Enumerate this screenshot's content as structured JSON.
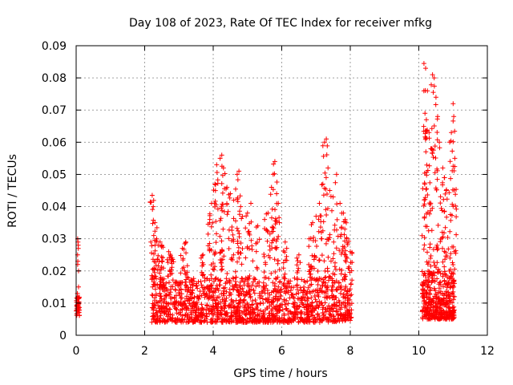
{
  "chart_data": {
    "type": "scatter",
    "title": "Day 108 of 2023, Rate Of TEC Index for receiver mfkg",
    "xlabel": "GPS time / hours",
    "ylabel": "ROTI / TECUs",
    "xlim": [
      0,
      12
    ],
    "ylim": [
      0,
      0.09
    ],
    "xticks": [
      0,
      2,
      4,
      6,
      8,
      10,
      12
    ],
    "xtick_labels": [
      "0",
      "2",
      "4",
      "6",
      "8",
      "10",
      "12"
    ],
    "yticks": [
      0,
      0.01,
      0.02,
      0.03,
      0.04,
      0.05,
      0.06,
      0.07,
      0.08,
      0.09
    ],
    "ytick_labels": [
      "0",
      "0.01",
      "0.02",
      "0.03",
      "0.04",
      "0.05",
      "0.06",
      "0.07",
      "0.08",
      "0.09"
    ],
    "grid": true,
    "marker": "+",
    "color": "#ff0000",
    "series": [
      {
        "name": "ROTI",
        "segments": [
          {
            "x_range": [
              0.0,
              0.1
            ],
            "typical": [
              0.006,
              0.012
            ],
            "spikes": [
              0.029,
              0.03,
              0.028,
              0.025,
              0.023,
              0.02,
              0.015,
              0.013,
              0.022,
              0.027
            ]
          },
          {
            "x_range": [
              2.2,
              8.05
            ],
            "typical": [
              0.004,
              0.018
            ],
            "spikes": [
              [
                2.22,
                0.0435
              ],
              [
                2.25,
                0.04
              ],
              [
                2.3,
                0.035
              ],
              [
                2.35,
                0.03
              ],
              [
                2.45,
                0.029
              ],
              [
                2.5,
                0.028
              ],
              [
                2.7,
                0.026
              ],
              [
                2.8,
                0.024
              ],
              [
                3.1,
                0.027
              ],
              [
                3.2,
                0.029
              ],
              [
                3.7,
                0.025
              ],
              [
                3.9,
                0.036
              ],
              [
                3.95,
                0.041
              ],
              [
                4.05,
                0.047
              ],
              [
                4.1,
                0.053
              ],
              [
                4.2,
                0.055
              ],
              [
                4.25,
                0.056
              ],
              [
                4.3,
                0.052
              ],
              [
                4.4,
                0.046
              ],
              [
                4.5,
                0.044
              ],
              [
                4.6,
                0.042
              ],
              [
                4.7,
                0.05
              ],
              [
                4.75,
                0.051
              ],
              [
                4.8,
                0.04
              ],
              [
                5.0,
                0.038
              ],
              [
                5.1,
                0.041
              ],
              [
                5.3,
                0.034
              ],
              [
                5.5,
                0.036
              ],
              [
                5.6,
                0.038
              ],
              [
                5.7,
                0.046
              ],
              [
                5.75,
                0.05
              ],
              [
                5.8,
                0.054
              ],
              [
                5.85,
                0.044
              ],
              [
                5.9,
                0.041
              ],
              [
                6.1,
                0.029
              ],
              [
                6.5,
                0.025
              ],
              [
                6.8,
                0.03
              ],
              [
                6.9,
                0.035
              ],
              [
                7.0,
                0.037
              ],
              [
                7.1,
                0.041
              ],
              [
                7.2,
                0.047
              ],
              [
                7.25,
                0.06
              ],
              [
                7.3,
                0.061
              ],
              [
                7.35,
                0.052
              ],
              [
                7.4,
                0.045
              ],
              [
                7.5,
                0.043
              ],
              [
                7.6,
                0.05
              ],
              [
                7.7,
                0.041
              ],
              [
                7.8,
                0.038
              ],
              [
                7.85,
                0.036
              ],
              [
                7.9,
                0.03
              ],
              [
                8.0,
                0.026
              ]
            ]
          },
          {
            "x_range": [
              10.1,
              11.05
            ],
            "typical": [
              0.005,
              0.02
            ],
            "spikes": [
              [
                10.15,
                0.0845
              ],
              [
                10.2,
                0.083
              ],
              [
                10.25,
                0.076
              ],
              [
                10.18,
                0.069
              ],
              [
                10.22,
                0.067
              ],
              [
                10.3,
                0.063
              ],
              [
                10.35,
                0.058
              ],
              [
                10.4,
                0.081
              ],
              [
                10.45,
                0.08
              ],
              [
                10.5,
                0.074
              ],
              [
                10.55,
                0.068
              ],
              [
                10.6,
                0.06
              ],
              [
                10.7,
                0.052
              ],
              [
                10.75,
                0.049
              ],
              [
                10.8,
                0.045
              ],
              [
                10.9,
                0.06
              ],
              [
                10.95,
                0.063
              ],
              [
                11.0,
                0.072
              ],
              [
                11.02,
                0.068
              ],
              [
                11.05,
                0.055
              ]
            ]
          }
        ]
      }
    ]
  }
}
